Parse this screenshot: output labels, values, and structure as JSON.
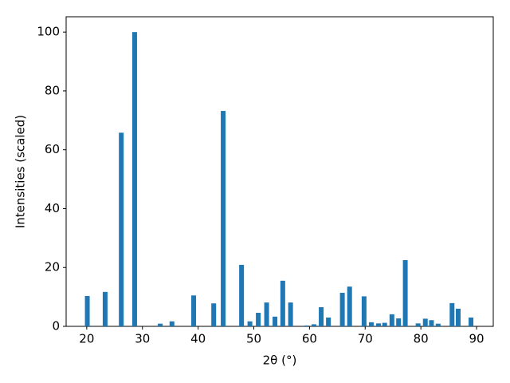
{
  "chart_data": {
    "type": "bar",
    "xlabel": "2θ (°)",
    "ylabel": "Intensities (scaled)",
    "color": "#1f77b4",
    "x": [
      20.1,
      23.3,
      26.2,
      28.6,
      33.2,
      35.3,
      39.2,
      42.8,
      44.5,
      47.8,
      49.3,
      50.8,
      52.3,
      53.8,
      55.2,
      56.6,
      59.5,
      60.8,
      62.1,
      63.4,
      65.9,
      67.2,
      69.8,
      71.1,
      72.4,
      73.5,
      74.8,
      76.0,
      77.2,
      79.5,
      80.8,
      81.9,
      83.1,
      85.6,
      86.7,
      89.0
    ],
    "values": [
      10.3,
      11.7,
      65.8,
      100,
      0.9,
      1.7,
      10.5,
      7.8,
      73.2,
      20.9,
      1.7,
      4.6,
      8.1,
      3.3,
      15.5,
      8.1,
      0.3,
      0.7,
      6.5,
      3.0,
      11.4,
      13.5,
      10.2,
      1.4,
      1.0,
      1.2,
      4.1,
      2.7,
      22.5,
      1.0,
      2.6,
      2.1,
      0.9,
      7.9,
      6.0,
      3.0
    ],
    "xlim": [
      16.3,
      93.0
    ],
    "ylim": [
      0,
      105.2
    ],
    "xticks": [
      20,
      30,
      40,
      50,
      60,
      70,
      80,
      90
    ],
    "yticks": [
      0,
      20,
      40,
      60,
      80,
      100
    ]
  }
}
